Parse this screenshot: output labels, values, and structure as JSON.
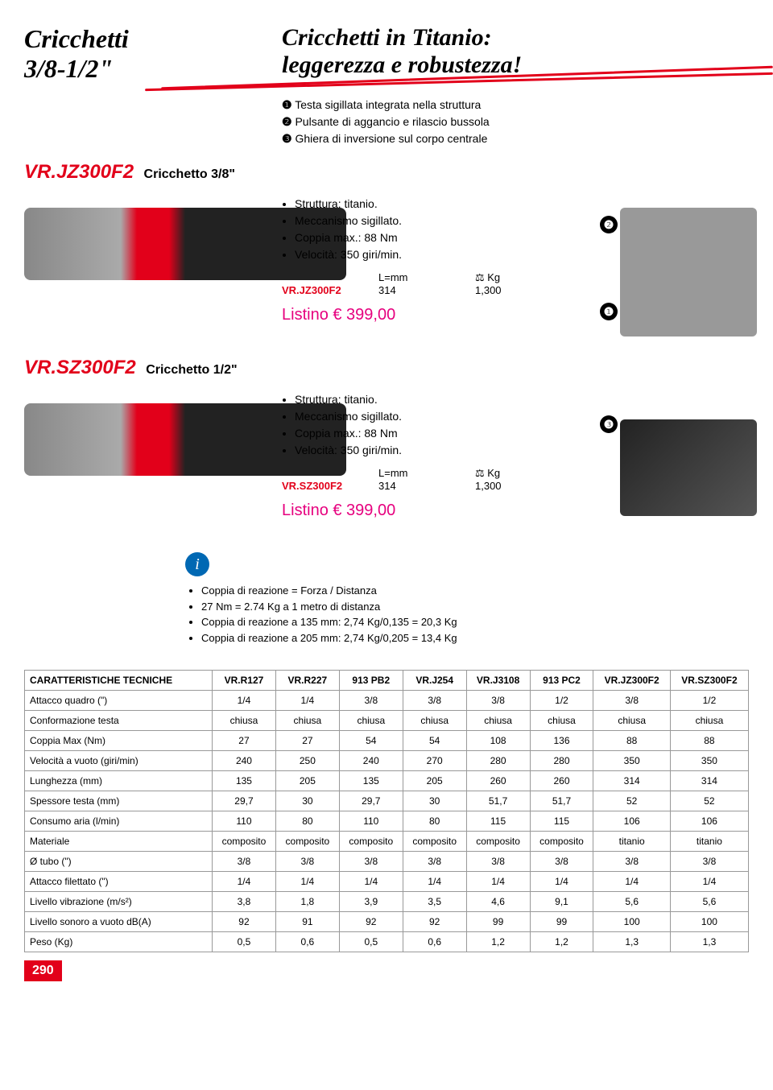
{
  "header": {
    "title_left_line1": "Cricchetti",
    "title_left_line2": "3/8-1/2\"",
    "title_right_line1": "Cricchetti in Titanio:",
    "title_right_line2": "leggerezza e robustezza!",
    "bullets": [
      "Testa sigillata integrata nella struttura",
      "Pulsante di aggancio e rilascio bussola",
      "Ghiera di inversione sul corpo centrale"
    ],
    "bullet_nums": [
      "❶",
      "❷",
      "❸"
    ]
  },
  "product1": {
    "sku": "VR.JZ300F2",
    "name": "Cricchetto 3/8\"",
    "specs": [
      "Struttura: titanio.",
      "Meccanismo sigillato.",
      "Coppia max.: 88 Nm",
      "Velocità: 350 giri/min."
    ],
    "table_hdr": [
      "",
      "L=mm",
      "⚖ Kg"
    ],
    "table_row": [
      "VR.JZ300F2",
      "314",
      "1,300"
    ],
    "listino": "Listino € 399,00",
    "callouts": [
      "❷",
      "❶"
    ]
  },
  "product2": {
    "sku": "VR.SZ300F2",
    "name": "Cricchetto 1/2\"",
    "specs": [
      "Struttura: titanio.",
      "Meccanismo sigillato.",
      "Coppia max.: 88 Nm",
      "Velocità: 350 giri/min."
    ],
    "table_hdr": [
      "",
      "L=mm",
      "⚖ Kg"
    ],
    "table_row": [
      "VR.SZ300F2",
      "314",
      "1,300"
    ],
    "listino": "Listino € 399,00",
    "callouts": [
      "❸"
    ]
  },
  "info": {
    "items": [
      "Coppia di reazione = Forza / Distanza",
      "27 Nm = 2.74 Kg a 1 metro di distanza",
      "Coppia di reazione a 135 mm: 2,74 Kg/0,135 = 20,3 Kg",
      "Coppia di reazione a 205 mm: 2,74 Kg/0,205 = 13,4 Kg"
    ]
  },
  "specs_table": {
    "header": [
      "CARATTERISTICHE TECNICHE",
      "VR.R127",
      "VR.R227",
      "913 PB2",
      "VR.J254",
      "VR.J3108",
      "913 PC2",
      "VR.JZ300F2",
      "VR.SZ300F2"
    ],
    "rows": [
      [
        "Attacco quadro (\")",
        "1/4",
        "1/4",
        "3/8",
        "3/8",
        "3/8",
        "1/2",
        "3/8",
        "1/2"
      ],
      [
        "Conformazione testa",
        "chiusa",
        "chiusa",
        "chiusa",
        "chiusa",
        "chiusa",
        "chiusa",
        "chiusa",
        "chiusa"
      ],
      [
        "Coppia Max (Nm)",
        "27",
        "27",
        "54",
        "54",
        "108",
        "136",
        "88",
        "88"
      ],
      [
        "Velocità a vuoto (giri/min)",
        "240",
        "250",
        "240",
        "270",
        "280",
        "280",
        "350",
        "350"
      ],
      [
        "Lunghezza (mm)",
        "135",
        "205",
        "135",
        "205",
        "260",
        "260",
        "314",
        "314"
      ],
      [
        "Spessore testa (mm)",
        "29,7",
        "30",
        "29,7",
        "30",
        "51,7",
        "51,7",
        "52",
        "52"
      ],
      [
        "Consumo aria (l/min)",
        "110",
        "80",
        "110",
        "80",
        "115",
        "115",
        "106",
        "106"
      ],
      [
        "Materiale",
        "composito",
        "composito",
        "composito",
        "composito",
        "composito",
        "composito",
        "titanio",
        "titanio"
      ],
      [
        "Ø tubo (\")",
        "3/8",
        "3/8",
        "3/8",
        "3/8",
        "3/8",
        "3/8",
        "3/8",
        "3/8"
      ],
      [
        "Attacco filettato (\")",
        "1/4",
        "1/4",
        "1/4",
        "1/4",
        "1/4",
        "1/4",
        "1/4",
        "1/4"
      ],
      [
        "Livello vibrazione (m/s²)",
        "3,8",
        "1,8",
        "3,9",
        "3,5",
        "4,6",
        "9,1",
        "5,6",
        "5,6"
      ],
      [
        "Livello sonoro a vuoto dB(A)",
        "92",
        "91",
        "92",
        "92",
        "99",
        "99",
        "100",
        "100"
      ],
      [
        "Peso (Kg)",
        "0,5",
        "0,6",
        "0,5",
        "0,6",
        "1,2",
        "1,2",
        "1,3",
        "1,3"
      ]
    ]
  },
  "page_number": "290"
}
